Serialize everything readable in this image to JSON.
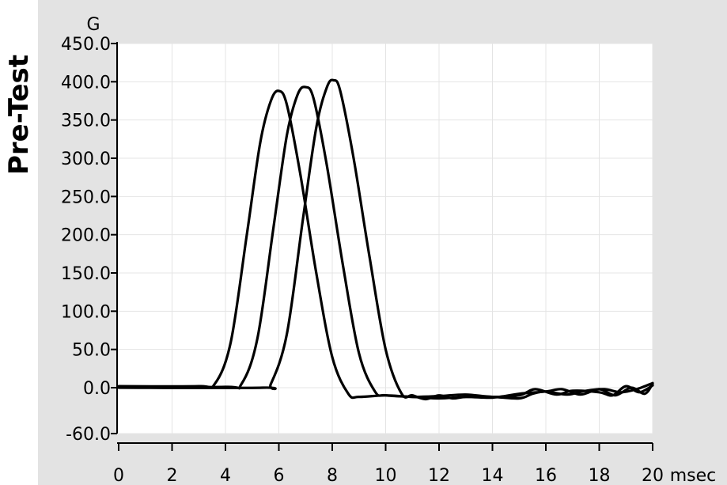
{
  "side_title": "Pre-Test",
  "chart_data": {
    "type": "line",
    "ylabel": "G",
    "xlabel": "msec",
    "xlim": [
      0,
      20
    ],
    "ylim": [
      -60,
      450
    ],
    "xticks": [
      0,
      2,
      4,
      6,
      8,
      10,
      12,
      14,
      16,
      18,
      20
    ],
    "yticks": [
      {
        "value": 450,
        "label": "450.0"
      },
      {
        "value": 400,
        "label": "400.0"
      },
      {
        "value": 350,
        "label": "350.0"
      },
      {
        "value": 300,
        "label": "300.0"
      },
      {
        "value": 250,
        "label": "250.0"
      },
      {
        "value": 200,
        "label": "200.0"
      },
      {
        "value": 150,
        "label": "150.0"
      },
      {
        "value": 100,
        "label": "100.0"
      },
      {
        "value": 50,
        "label": "50.0"
      },
      {
        "value": 0,
        "label": "0.0"
      },
      {
        "value": -60,
        "label": "-60.0"
      }
    ],
    "grid": true,
    "line_color": "#000000",
    "series": [
      {
        "x": [
          0,
          3,
          3.6,
          4.2,
          4.8,
          5.3,
          5.7,
          6.0,
          6.3,
          6.8,
          7.4,
          8.0,
          8.6,
          9,
          10,
          11,
          12,
          13,
          14,
          15,
          15.6,
          16.4,
          17,
          18,
          18.5,
          19,
          19.5,
          20
        ],
        "y": [
          2,
          2,
          5,
          60,
          200,
          320,
          375,
          388,
          370,
          280,
          150,
          40,
          -8,
          -12,
          -10,
          -12,
          -11,
          -9,
          -12,
          -10,
          -2,
          -9,
          -4,
          -6,
          -10,
          2,
          -6,
          3
        ]
      },
      {
        "x": [
          0,
          4,
          4.6,
          5.2,
          5.8,
          6.3,
          6.7,
          7.0,
          7.3,
          7.8,
          8.4,
          9.0,
          9.6,
          10,
          11,
          12,
          13,
          14,
          15,
          16,
          16.6,
          17.3,
          18,
          18.6,
          19.2,
          19.7,
          20
        ],
        "y": [
          1,
          1,
          5,
          65,
          210,
          330,
          383,
          393,
          378,
          290,
          160,
          45,
          -5,
          -10,
          -12,
          -14,
          -12,
          -13,
          -8,
          -5,
          -2,
          -9,
          -2,
          -10,
          0,
          -8,
          5
        ]
      },
      {
        "x": [
          0,
          5.4,
          5.7,
          6.3,
          6.9,
          7.4,
          7.8,
          8.05,
          8.3,
          8.8,
          9.4,
          10.0,
          10.6,
          11,
          11.5,
          12,
          12.5,
          13,
          14,
          15,
          15.5,
          16,
          16.8,
          17.5,
          18.2,
          18.8,
          19.4,
          20
        ],
        "y": [
          0,
          0,
          5,
          70,
          220,
          340,
          393,
          402,
          388,
          300,
          170,
          50,
          -8,
          -10,
          -15,
          -10,
          -14,
          -12,
          -12,
          -14,
          -8,
          -5,
          -9,
          -4,
          -2,
          -6,
          -2,
          6
        ]
      }
    ]
  }
}
